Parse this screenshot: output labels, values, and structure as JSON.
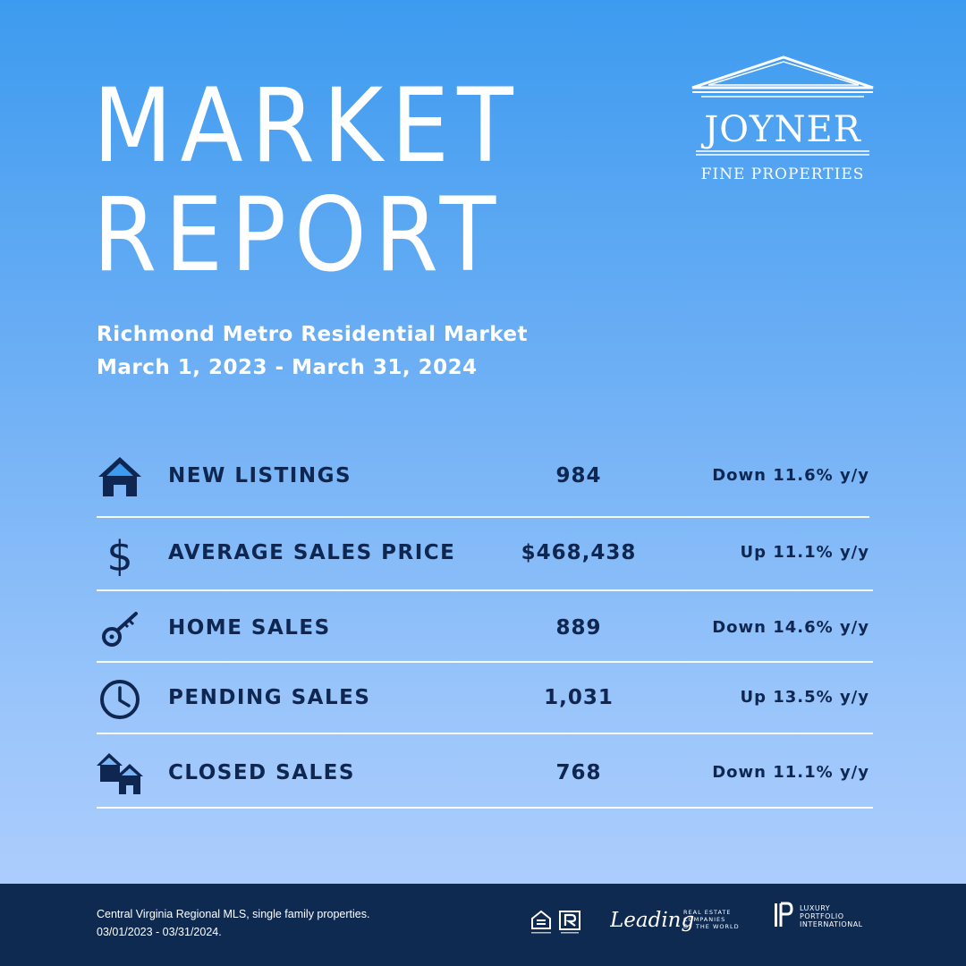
{
  "header": {
    "title_line1": "MARKET",
    "title_line2": "REPORT",
    "subtitle_line1": "Richmond Metro Residential Market",
    "subtitle_line2": "March 1, 2023 - March 31, 2024"
  },
  "brand": {
    "logo_text": "JOYNER",
    "logo_tagline": "FINE PROPERTIES"
  },
  "stats": [
    {
      "icon": "house-icon",
      "label": "NEW LISTINGS",
      "value": "984",
      "change": "Down 11.6% y/y"
    },
    {
      "icon": "dollar-icon",
      "label": "AVERAGE SALES PRICE",
      "value": "$468,438",
      "change": "Up 11.1% y/y"
    },
    {
      "icon": "key-icon",
      "label": "HOME SALES",
      "value": "889",
      "change": "Down 14.6% y/y"
    },
    {
      "icon": "clock-icon",
      "label": "PENDING SALES",
      "value": "1,031",
      "change": "Up 13.5% y/y"
    },
    {
      "icon": "two-houses-icon",
      "label": "CLOSED SALES",
      "value": "768",
      "change": "Down 11.1% y/y"
    }
  ],
  "footer": {
    "source_line1": "Central Virginia Regional MLS, single family properties.",
    "source_line2": "03/01/2023 - 03/31/2024.",
    "leading_word": "Leading",
    "leading_tagline_1": "REAL ESTATE",
    "leading_tagline_2": "COMPANIES",
    "leading_tagline_3": "OF THE WORLD",
    "lpi_line1": "LUXURY",
    "lpi_line2": "PORTFOLIO",
    "lpi_line3": "INTERNATIONAL"
  },
  "colors": {
    "background_top": "#3d9bef",
    "background_bottom": "#b4d0fd",
    "text_dark": "#0f2750",
    "footer_bg": "#0f2a50",
    "white": "#ffffff"
  }
}
